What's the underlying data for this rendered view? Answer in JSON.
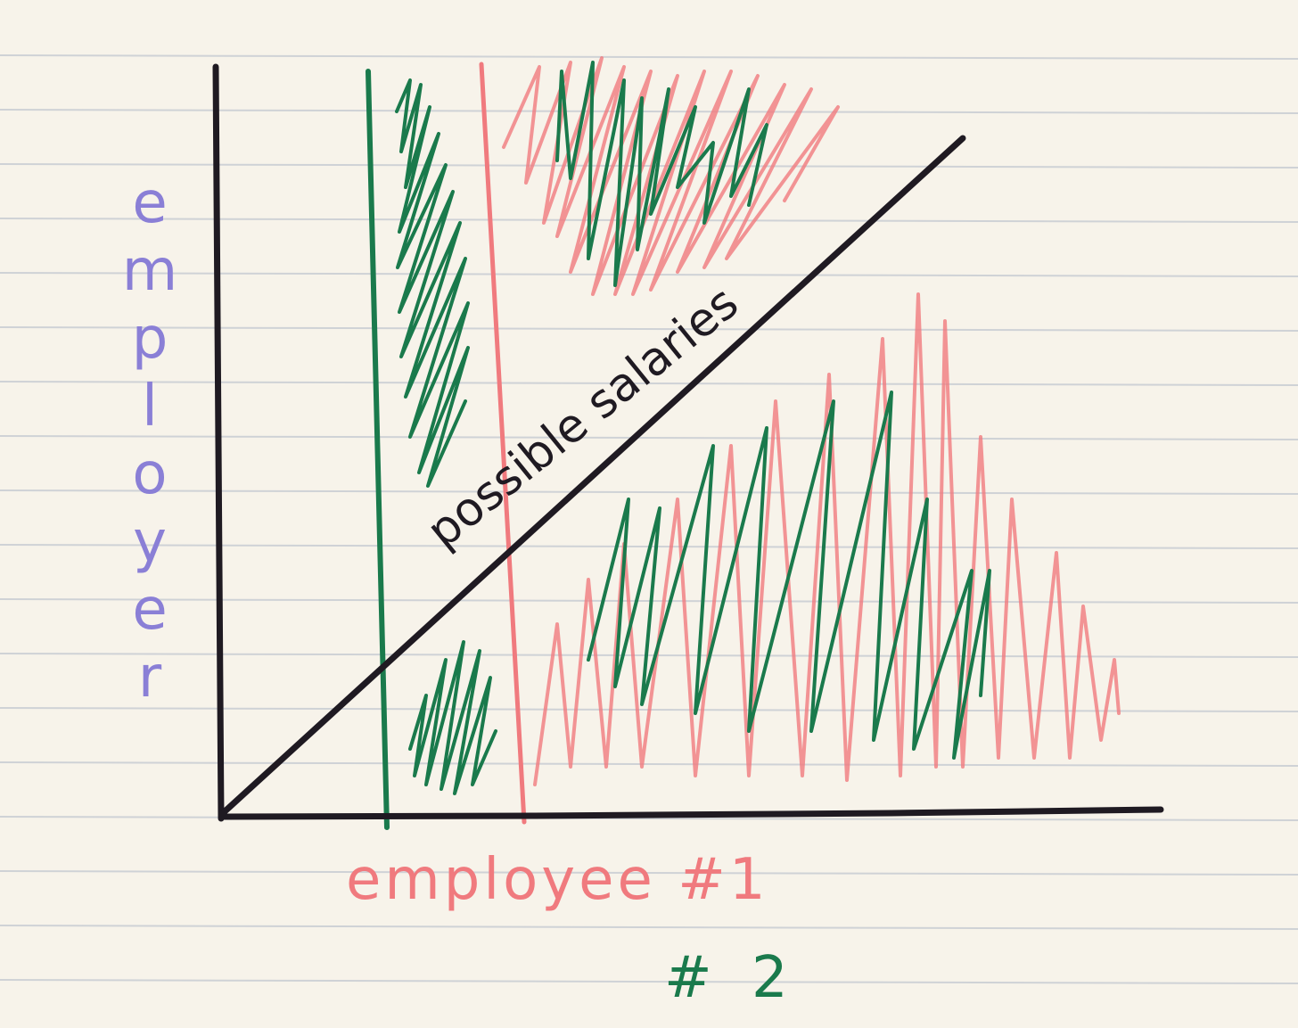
{
  "labels": {
    "y_axis": "employer",
    "x_axis": "employee #1",
    "x_axis_second": "# 2",
    "diagonal": "possible salaries"
  },
  "colors": {
    "paper": "#f7f3ea",
    "rule_lines": "#cfd2d6",
    "axes_ink": "#1f1a22",
    "employer_ink": "#8a7fd6",
    "employee1_ink": "#f07a7e",
    "employee2_ink": "#1a7a4c"
  }
}
